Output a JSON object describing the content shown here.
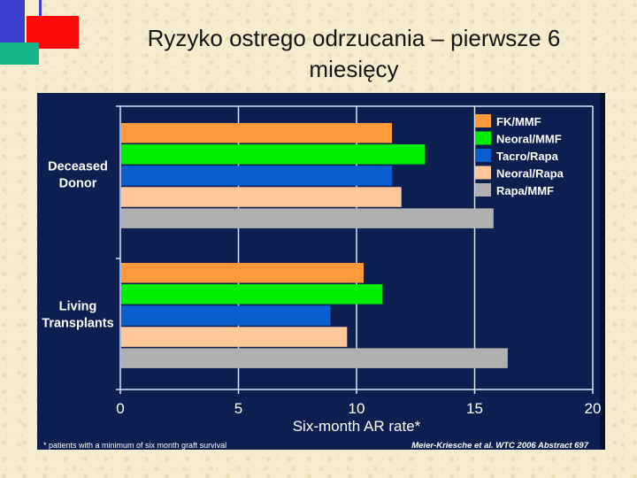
{
  "slide": {
    "title": "Ryzyko ostrego odrzucania – pierwsze 6 miesięcy"
  },
  "colors": {
    "panel_background": "#0c1f50",
    "axis": "#dde6ff",
    "text": "#ffffff"
  },
  "chart_data": {
    "type": "bar",
    "orientation": "horizontal",
    "title": "",
    "categories": [
      "Deceased Donor",
      "Living Transplants"
    ],
    "category_display": [
      [
        "Deceased",
        "Donor"
      ],
      [
        "Living",
        "Transplants"
      ]
    ],
    "series": [
      {
        "name": "FK/MMF",
        "color": "#ff9a3c",
        "values": [
          11.5,
          10.3
        ]
      },
      {
        "name": "Neoral/MMF",
        "color": "#00ee00",
        "values": [
          12.9,
          11.1
        ]
      },
      {
        "name": "Tacro/Rapa",
        "color": "#0a5ed0",
        "values": [
          11.5,
          8.9
        ]
      },
      {
        "name": "Neoral/Rapa",
        "color": "#ffc89a",
        "values": [
          11.9,
          9.6
        ]
      },
      {
        "name": "Rapa/MMF",
        "color": "#b0b0b0",
        "values": [
          15.8,
          16.4
        ]
      }
    ],
    "xlabel": "Six-month AR rate*",
    "ylabel": "",
    "xlim": [
      0,
      20
    ],
    "xticks": [
      0,
      5,
      10,
      15,
      20
    ],
    "grid": "vertical",
    "legend": "top-right",
    "footnote": "* patients with a minimum of six month graft survival",
    "source": "Meier-Kriesche et al. WTC 2006 Abstract 697"
  }
}
